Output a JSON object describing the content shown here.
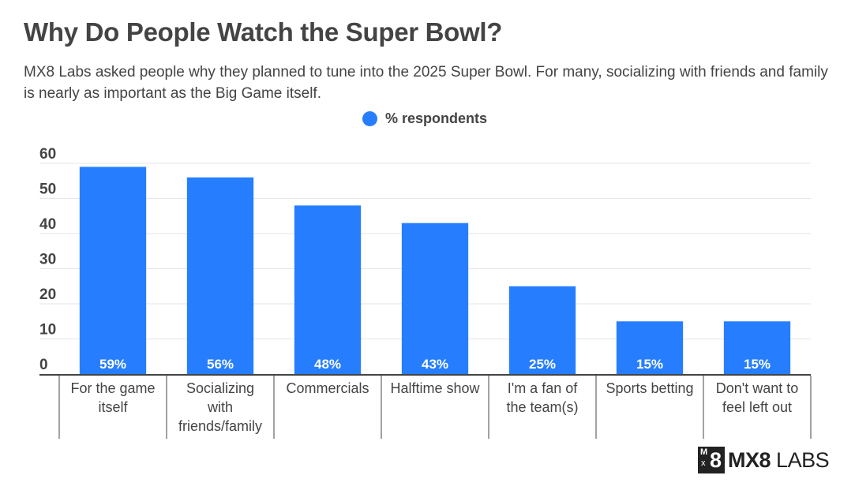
{
  "header": {
    "title": "Why Do People Watch the Super Bowl?",
    "subtitle": "MX8 Labs asked people why they planned to tune into the 2025 Super Bowl. For many, socializing with friends and family is nearly as important as the Big Game itself."
  },
  "legend": {
    "label": "% respondents",
    "color": "#267EFF"
  },
  "logo": {
    "box_top": "M",
    "box_bottom": "x",
    "box_digit": "8",
    "brand": "MX8",
    "suffix": "LABS"
  },
  "chart_data": {
    "type": "bar",
    "title": "Why Do People Watch the Super Bowl?",
    "xlabel": "",
    "ylabel": "",
    "ylim": [
      0,
      60
    ],
    "yticks": [
      0,
      10,
      20,
      30,
      40,
      50,
      60
    ],
    "grid": true,
    "legend_position": "top-center",
    "categories": [
      [
        "For the game",
        "itself"
      ],
      [
        "Socializing",
        "with",
        "friends/family"
      ],
      [
        "Commercials"
      ],
      [
        "Halftime show"
      ],
      [
        "I'm a fan of",
        "the team(s)"
      ],
      [
        "Sports betting"
      ],
      [
        "Don't want to",
        "feel left out"
      ]
    ],
    "series": [
      {
        "name": "% respondents",
        "color": "#267EFF",
        "values": [
          59,
          56,
          48,
          43,
          25,
          15,
          15
        ],
        "labels": [
          "59%",
          "56%",
          "48%",
          "43%",
          "25%",
          "15%",
          "15%"
        ]
      }
    ]
  }
}
